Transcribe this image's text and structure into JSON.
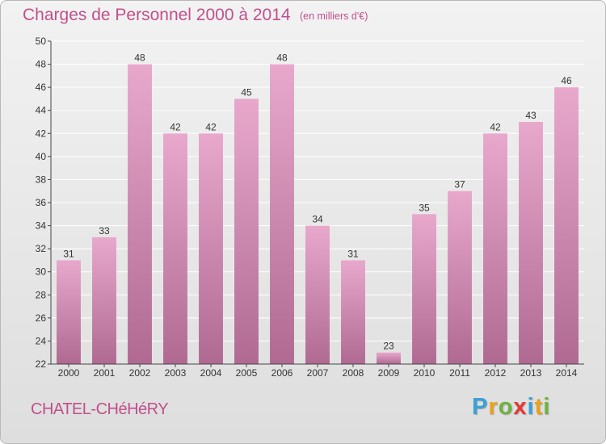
{
  "header": {
    "title": "Charges de Personnel 2000 à 2014",
    "subtitle": "(en milliers d'€)"
  },
  "footer": {
    "commune": "CHATEL-CHéHéRY",
    "logo_letters": [
      "P",
      "r",
      "o",
      "x",
      "i",
      "t",
      "i"
    ],
    "logo_colors": [
      "#3aa0d8",
      "#e9a21a",
      "#6db33f",
      "#e23a35",
      "#3aa0d8",
      "#e9a21a",
      "#6db33f"
    ]
  },
  "colors": {
    "bar_top": "#e8a8cc",
    "bar_bottom": "#b06a92",
    "text": "#c0508c",
    "axis": "#444444",
    "grid": "#ffffff"
  },
  "chart_data": {
    "type": "bar",
    "categories": [
      "2000",
      "2001",
      "2002",
      "2003",
      "2004",
      "2005",
      "2006",
      "2007",
      "2008",
      "2009",
      "2010",
      "2011",
      "2012",
      "2013",
      "2014"
    ],
    "series": [
      {
        "values": [
          31,
          33,
          48,
          42,
          42,
          45,
          48,
          34,
          31,
          23,
          35,
          37,
          42,
          43,
          46
        ]
      }
    ],
    "data_labels": [
      "31",
      "33",
      "48",
      "42",
      "42",
      "45",
      "48",
      "34",
      "31",
      "23",
      "35",
      "37",
      "42",
      "43",
      "46"
    ],
    "title": "Charges de Personnel 2000 à 2014",
    "ylim": [
      22,
      50
    ],
    "yticks": [
      "22",
      "24",
      "26",
      "28",
      "30",
      "32",
      "34",
      "36",
      "38",
      "40",
      "42",
      "44",
      "46",
      "48",
      "50"
    ],
    "grid": true,
    "legend": "none"
  }
}
